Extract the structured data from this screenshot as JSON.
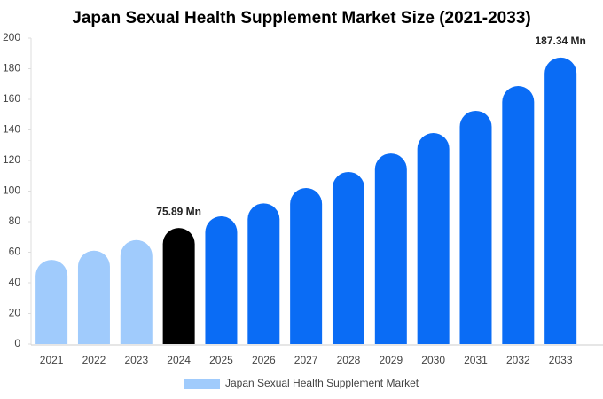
{
  "chart_data": {
    "type": "bar",
    "title": "Japan Sexual Health Supplement Market Size (2021-2033)",
    "categories": [
      "2021",
      "2022",
      "2023",
      "2024",
      "2025",
      "2026",
      "2027",
      "2028",
      "2029",
      "2030",
      "2031",
      "2032",
      "2033"
    ],
    "series": [
      {
        "name": "Japan Sexual Health Supplement Market",
        "color": "#a0cbfc",
        "values": [
          55,
          61,
          68,
          75.89,
          83.5,
          92,
          102,
          112.5,
          124.6,
          138,
          152.5,
          168.7,
          187.34
        ],
        "value_labels": [
          null,
          null,
          null,
          "75.89 Mn",
          null,
          null,
          null,
          null,
          null,
          null,
          null,
          null,
          "187.34 Mn"
        ],
        "bar_colors": [
          "#a0cbfc",
          "#a0cbfc",
          "#a0cbfc",
          "#000000",
          "#0a6cf5",
          "#0a6cf5",
          "#0a6cf5",
          "#0a6cf5",
          "#0a6cf5",
          "#0a6cf5",
          "#0a6cf5",
          "#0a6cf5",
          "#0a6cf5"
        ]
      }
    ],
    "ylim": [
      0,
      200
    ],
    "yticks": [
      0,
      20,
      40,
      60,
      80,
      100,
      120,
      140,
      160,
      180,
      200
    ],
    "legend": "bottom"
  }
}
